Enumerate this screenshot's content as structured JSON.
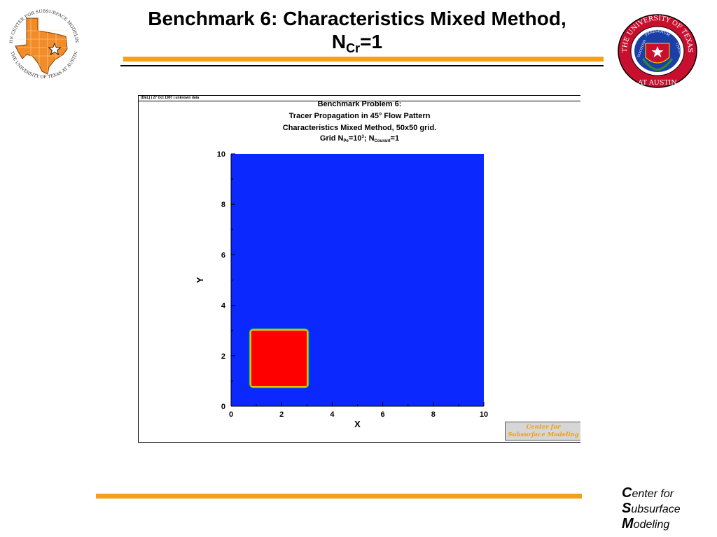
{
  "slide": {
    "title_line1": "Benchmark 6: Characteristics Mixed Method,",
    "title_n": "N",
    "title_sub": "Cr",
    "title_rest": "=1"
  },
  "left_logo": {
    "ring_text": "THE CENTER FOR SUBSURFACE MODELING",
    "ring_text_bottom": "THE UNIVERSITY OF TEXAS AT AUSTIN",
    "icon": "texas-map-star-icon",
    "color": "#f28c28"
  },
  "right_seal": {
    "ring_text_top": "THE UNIVERSITY OF TEXAS",
    "ring_text_bottom": "AT AUSTIN",
    "inner_top": "PRAESIDIUM",
    "inner_left": "DISCIPLINA",
    "inner_right": "CIVITATIS",
    "icon": "ut-seal-icon",
    "color": "#c8102e"
  },
  "figure": {
    "header": "[DEL] | 27 Oct 1997 | unknown data",
    "title_line1": "Benchmark Problem 6:",
    "title_line2": "Tracer Propagation in 45° Flow Pattern",
    "title_line3": "Characteristics Mixed Method, 50x50 grid.",
    "title_line4_a": "Grid N",
    "title_line4_sub1": "Pe",
    "title_line4_b": "=10",
    "title_line4_sup": "3",
    "title_line4_c": "; N",
    "title_line4_sub2": "Courant",
    "title_line4_d": "=1",
    "stamp_line1": "Center for",
    "stamp_line2": "Subsurface Modeling"
  },
  "chart_data": {
    "type": "heatmap",
    "xlabel": "X",
    "ylabel": "Y",
    "xlim": [
      0,
      10
    ],
    "ylim": [
      0,
      10
    ],
    "xticks": [
      "0",
      "2",
      "4",
      "6",
      "8",
      "10"
    ],
    "yticks": [
      "0",
      "2",
      "4",
      "6",
      "8",
      "10"
    ],
    "background_color": "#0a28ff",
    "region": {
      "x0": 0.8,
      "x1": 3.0,
      "y0": 0.8,
      "y1": 3.0,
      "value": 1,
      "color": "#ff0000"
    },
    "edge_colors": [
      "#32cd32",
      "#ffd700"
    ]
  },
  "footer": {
    "line1_cap": "C",
    "line1_rest": "enter for",
    "line2_cap": "S",
    "line2_rest": "ubsurface",
    "line3_cap": "M",
    "line3_rest": "odeling"
  },
  "colors": {
    "accent": "#f5a01a"
  }
}
